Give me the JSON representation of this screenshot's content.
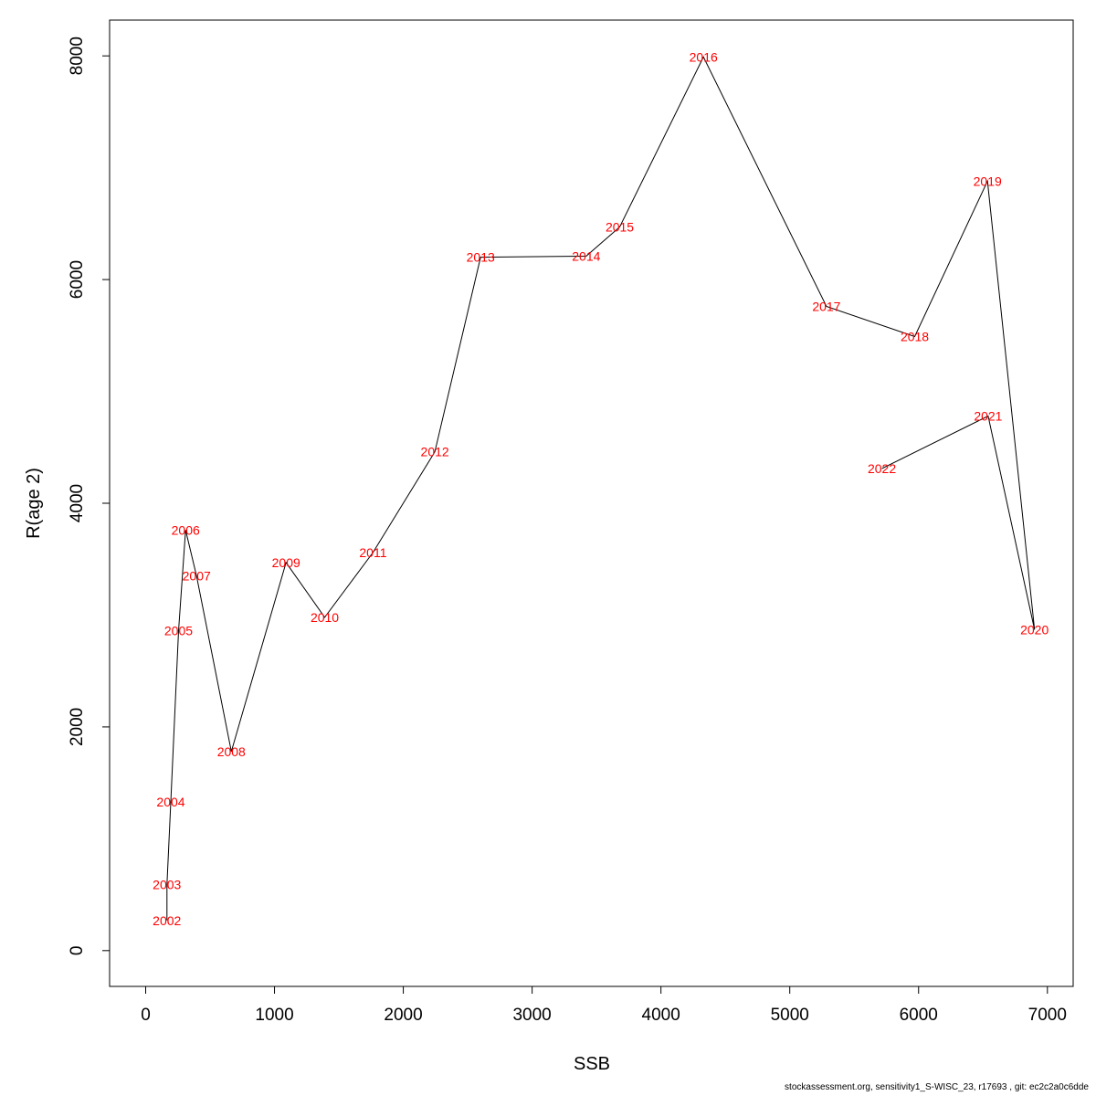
{
  "chart_data": {
    "type": "line",
    "xlabel": "SSB",
    "ylabel": "R(age 2)",
    "xlim": [
      -280,
      7200
    ],
    "ylim": [
      -320,
      8320
    ],
    "xticks": [
      0,
      1000,
      2000,
      3000,
      4000,
      5000,
      6000,
      7000
    ],
    "yticks": [
      0,
      2000,
      4000,
      6000,
      8000
    ],
    "grid": false,
    "points": [
      {
        "label": "2002",
        "x": 165,
        "y": 270
      },
      {
        "label": "2003",
        "x": 165,
        "y": 590
      },
      {
        "label": "2004",
        "x": 195,
        "y": 1330
      },
      {
        "label": "2005",
        "x": 255,
        "y": 2860
      },
      {
        "label": "2006",
        "x": 310,
        "y": 3760
      },
      {
        "label": "2007",
        "x": 395,
        "y": 3350
      },
      {
        "label": "2008",
        "x": 665,
        "y": 1780
      },
      {
        "label": "2009",
        "x": 1090,
        "y": 3470
      },
      {
        "label": "2010",
        "x": 1390,
        "y": 2980
      },
      {
        "label": "2011",
        "x": 1765,
        "y": 3560
      },
      {
        "label": "2012",
        "x": 2245,
        "y": 4460
      },
      {
        "label": "2013",
        "x": 2600,
        "y": 6200
      },
      {
        "label": "2014",
        "x": 3420,
        "y": 6210
      },
      {
        "label": "2015",
        "x": 3680,
        "y": 6470
      },
      {
        "label": "2016",
        "x": 4330,
        "y": 7990
      },
      {
        "label": "2017",
        "x": 5285,
        "y": 5760
      },
      {
        "label": "2018",
        "x": 5970,
        "y": 5490
      },
      {
        "label": "2019",
        "x": 6535,
        "y": 6880
      },
      {
        "label": "2020",
        "x": 6900,
        "y": 2870
      },
      {
        "label": "2021",
        "x": 6540,
        "y": 4780
      },
      {
        "label": "2022",
        "x": 5715,
        "y": 4310
      }
    ]
  },
  "footer": "stockassessment.org, sensitivity1_S-WISC_23, r17693 , git: ec2c2a0c6dde"
}
